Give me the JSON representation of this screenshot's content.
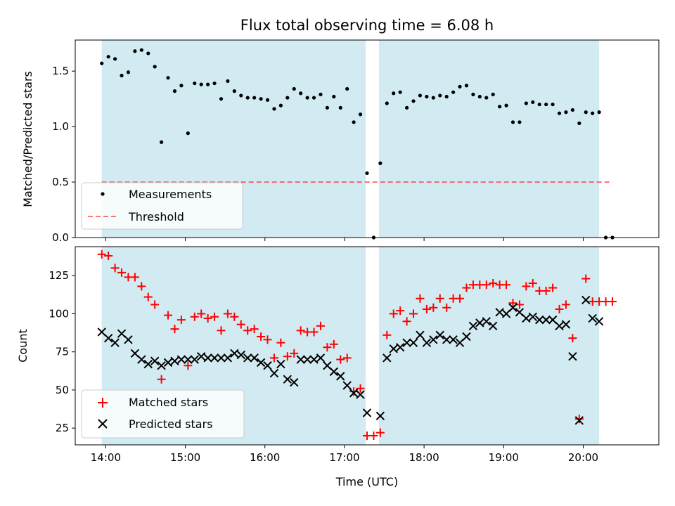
{
  "title": "Flux total observing time = 6.08 h",
  "xlabel": "Time (UTC)",
  "colors": {
    "band": "#add8e6",
    "measurement": "#000000",
    "threshold": "#ff0000",
    "matched": "#ff0000",
    "predicted": "#000000"
  },
  "chart_data": [
    {
      "type": "scatter",
      "ylabel": "Matched/Predicted stars",
      "xlim": [
        "13:37",
        "20:57"
      ],
      "ylim": [
        0,
        1.78
      ],
      "yticks": [
        0.0,
        0.5,
        1.0,
        1.5
      ],
      "ytick_labels": [
        "0.0",
        "0.5",
        "1.0",
        "1.5"
      ],
      "shaded_intervals": [
        [
          "13:57",
          "17:16"
        ],
        [
          "17:26",
          "20:12"
        ]
      ],
      "threshold": {
        "name": "Threshold",
        "y": 0.5,
        "x_range": [
          "13:57",
          "20:22"
        ],
        "style": "dashed"
      },
      "legend": {
        "placement": "lower left",
        "entries": [
          "Measurements",
          "Threshold"
        ]
      },
      "series": [
        {
          "name": "Measurements",
          "marker": "dot",
          "points": [
            [
              "13:57",
              1.57
            ],
            [
              "14:02",
              1.63
            ],
            [
              "14:07",
              1.61
            ],
            [
              "14:12",
              1.46
            ],
            [
              "14:17",
              1.49
            ],
            [
              "14:22",
              1.68
            ],
            [
              "14:27",
              1.69
            ],
            [
              "14:32",
              1.66
            ],
            [
              "14:37",
              1.54
            ],
            [
              "14:42",
              0.86
            ],
            [
              "14:47",
              1.44
            ],
            [
              "14:52",
              1.32
            ],
            [
              "14:57",
              1.37
            ],
            [
              "15:02",
              0.94
            ],
            [
              "15:07",
              1.39
            ],
            [
              "15:12",
              1.38
            ],
            [
              "15:17",
              1.38
            ],
            [
              "15:22",
              1.39
            ],
            [
              "15:27",
              1.25
            ],
            [
              "15:32",
              1.41
            ],
            [
              "15:37",
              1.32
            ],
            [
              "15:42",
              1.28
            ],
            [
              "15:47",
              1.26
            ],
            [
              "15:52",
              1.26
            ],
            [
              "15:57",
              1.25
            ],
            [
              "16:02",
              1.24
            ],
            [
              "16:07",
              1.16
            ],
            [
              "16:12",
              1.19
            ],
            [
              "16:17",
              1.26
            ],
            [
              "16:22",
              1.34
            ],
            [
              "16:27",
              1.3
            ],
            [
              "16:32",
              1.26
            ],
            [
              "16:37",
              1.26
            ],
            [
              "16:42",
              1.29
            ],
            [
              "16:47",
              1.17
            ],
            [
              "16:52",
              1.27
            ],
            [
              "16:57",
              1.17
            ],
            [
              "17:02",
              1.34
            ],
            [
              "17:07",
              1.04
            ],
            [
              "17:12",
              1.11
            ],
            [
              "17:17",
              0.58
            ],
            [
              "17:22",
              0.0
            ],
            [
              "17:27",
              0.67
            ],
            [
              "17:32",
              1.21
            ],
            [
              "17:37",
              1.3
            ],
            [
              "17:42",
              1.31
            ],
            [
              "17:47",
              1.17
            ],
            [
              "17:52",
              1.23
            ],
            [
              "17:57",
              1.28
            ],
            [
              "18:02",
              1.27
            ],
            [
              "18:07",
              1.26
            ],
            [
              "18:12",
              1.28
            ],
            [
              "18:17",
              1.27
            ],
            [
              "18:22",
              1.31
            ],
            [
              "18:27",
              1.36
            ],
            [
              "18:32",
              1.37
            ],
            [
              "18:37",
              1.29
            ],
            [
              "18:42",
              1.27
            ],
            [
              "18:47",
              1.26
            ],
            [
              "18:52",
              1.29
            ],
            [
              "18:57",
              1.18
            ],
            [
              "19:02",
              1.19
            ],
            [
              "19:07",
              1.04
            ],
            [
              "19:12",
              1.04
            ],
            [
              "19:17",
              1.21
            ],
            [
              "19:22",
              1.22
            ],
            [
              "19:27",
              1.2
            ],
            [
              "19:32",
              1.2
            ],
            [
              "19:37",
              1.2
            ],
            [
              "19:42",
              1.12
            ],
            [
              "19:47",
              1.13
            ],
            [
              "19:52",
              1.15
            ],
            [
              "19:57",
              1.03
            ],
            [
              "20:02",
              1.13
            ],
            [
              "20:07",
              1.12
            ],
            [
              "20:12",
              1.13
            ],
            [
              "20:17",
              0.0
            ],
            [
              "20:22",
              0.0
            ]
          ]
        }
      ]
    },
    {
      "type": "scatter",
      "ylabel": "Count",
      "xlabel": "Time (UTC)",
      "xlim": [
        "13:37",
        "20:57"
      ],
      "ylim": [
        14,
        144
      ],
      "yticks": [
        25,
        50,
        75,
        100,
        125
      ],
      "ytick_labels": [
        "25",
        "50",
        "75",
        "100",
        "125"
      ],
      "xticks": [
        "14:00",
        "15:00",
        "16:00",
        "17:00",
        "18:00",
        "19:00",
        "20:00"
      ],
      "xtick_labels": [
        "14:00",
        "15:00",
        "16:00",
        "17:00",
        "18:00",
        "19:00",
        "20:00"
      ],
      "shaded_intervals": [
        [
          "13:57",
          "17:16"
        ],
        [
          "17:26",
          "20:12"
        ]
      ],
      "legend": {
        "placement": "lower left",
        "entries": [
          "Matched stars",
          "Predicted stars"
        ]
      },
      "series": [
        {
          "name": "Matched stars",
          "marker": "plus",
          "points": [
            [
              "13:57",
              139
            ],
            [
              "14:02",
              138
            ],
            [
              "14:07",
              130
            ],
            [
              "14:12",
              127
            ],
            [
              "14:17",
              124
            ],
            [
              "14:22",
              124
            ],
            [
              "14:27",
              118
            ],
            [
              "14:32",
              111
            ],
            [
              "14:37",
              106
            ],
            [
              "14:42",
              57
            ],
            [
              "14:47",
              99
            ],
            [
              "14:52",
              90
            ],
            [
              "14:57",
              96
            ],
            [
              "15:02",
              66
            ],
            [
              "15:07",
              98
            ],
            [
              "15:12",
              100
            ],
            [
              "15:17",
              97
            ],
            [
              "15:22",
              98
            ],
            [
              "15:27",
              89
            ],
            [
              "15:32",
              100
            ],
            [
              "15:37",
              98
            ],
            [
              "15:42",
              93
            ],
            [
              "15:47",
              89
            ],
            [
              "15:52",
              90
            ],
            [
              "15:57",
              85
            ],
            [
              "16:02",
              83
            ],
            [
              "16:07",
              71
            ],
            [
              "16:12",
              81
            ],
            [
              "16:17",
              72
            ],
            [
              "16:22",
              74
            ],
            [
              "16:27",
              89
            ],
            [
              "16:32",
              88
            ],
            [
              "16:37",
              88
            ],
            [
              "16:42",
              92
            ],
            [
              "16:47",
              78
            ],
            [
              "16:52",
              80
            ],
            [
              "16:57",
              70
            ],
            [
              "17:02",
              71
            ],
            [
              "17:07",
              49
            ],
            [
              "17:12",
              51
            ],
            [
              "17:17",
              20
            ],
            [
              "17:22",
              20
            ],
            [
              "17:27",
              22
            ],
            [
              "17:32",
              86
            ],
            [
              "17:37",
              100
            ],
            [
              "17:42",
              102
            ],
            [
              "17:47",
              95
            ],
            [
              "17:52",
              100
            ],
            [
              "17:57",
              110
            ],
            [
              "18:02",
              103
            ],
            [
              "18:07",
              104
            ],
            [
              "18:12",
              110
            ],
            [
              "18:17",
              104
            ],
            [
              "18:22",
              110
            ],
            [
              "18:27",
              110
            ],
            [
              "18:32",
              117
            ],
            [
              "18:37",
              119
            ],
            [
              "18:42",
              119
            ],
            [
              "18:47",
              119
            ],
            [
              "18:52",
              120
            ],
            [
              "18:57",
              119
            ],
            [
              "19:02",
              119
            ],
            [
              "19:07",
              107
            ],
            [
              "19:12",
              106
            ],
            [
              "19:17",
              118
            ],
            [
              "19:22",
              120
            ],
            [
              "19:27",
              115
            ],
            [
              "19:32",
              115
            ],
            [
              "19:37",
              117
            ],
            [
              "19:42",
              103
            ],
            [
              "19:47",
              106
            ],
            [
              "19:52",
              84
            ],
            [
              "19:57",
              31
            ],
            [
              "20:02",
              123
            ],
            [
              "20:07",
              108
            ],
            [
              "20:12",
              108
            ],
            [
              "20:17",
              108
            ],
            [
              "20:22",
              108
            ]
          ]
        },
        {
          "name": "Predicted stars",
          "marker": "x",
          "points": [
            [
              "13:57",
              88
            ],
            [
              "14:02",
              84
            ],
            [
              "14:07",
              81
            ],
            [
              "14:12",
              87
            ],
            [
              "14:17",
              83
            ],
            [
              "14:22",
              74
            ],
            [
              "14:27",
              70
            ],
            [
              "14:32",
              67
            ],
            [
              "14:37",
              69
            ],
            [
              "14:42",
              66
            ],
            [
              "14:47",
              68
            ],
            [
              "14:52",
              69
            ],
            [
              "14:57",
              70
            ],
            [
              "15:02",
              70
            ],
            [
              "15:07",
              70
            ],
            [
              "15:12",
              72
            ],
            [
              "15:17",
              71
            ],
            [
              "15:22",
              71
            ],
            [
              "15:27",
              71
            ],
            [
              "15:32",
              71
            ],
            [
              "15:37",
              74
            ],
            [
              "15:42",
              73
            ],
            [
              "15:47",
              71
            ],
            [
              "15:52",
              71
            ],
            [
              "15:57",
              68
            ],
            [
              "16:02",
              66
            ],
            [
              "16:07",
              61
            ],
            [
              "16:12",
              67
            ],
            [
              "16:17",
              57
            ],
            [
              "16:22",
              55
            ],
            [
              "16:27",
              70
            ],
            [
              "16:32",
              70
            ],
            [
              "16:37",
              70
            ],
            [
              "16:42",
              71
            ],
            [
              "16:47",
              66
            ],
            [
              "16:52",
              62
            ],
            [
              "16:57",
              59
            ],
            [
              "17:02",
              53
            ],
            [
              "17:07",
              48
            ],
            [
              "17:12",
              47
            ],
            [
              "17:17",
              35
            ],
            [
              "17:27",
              33
            ],
            [
              "17:32",
              71
            ],
            [
              "17:37",
              77
            ],
            [
              "17:42",
              78
            ],
            [
              "17:47",
              81
            ],
            [
              "17:52",
              81
            ],
            [
              "17:57",
              86
            ],
            [
              "18:02",
              81
            ],
            [
              "18:07",
              83
            ],
            [
              "18:12",
              86
            ],
            [
              "18:17",
              83
            ],
            [
              "18:22",
              83
            ],
            [
              "18:27",
              81
            ],
            [
              "18:32",
              85
            ],
            [
              "18:37",
              92
            ],
            [
              "18:42",
              94
            ],
            [
              "18:47",
              95
            ],
            [
              "18:52",
              92
            ],
            [
              "18:57",
              101
            ],
            [
              "19:02",
              100
            ],
            [
              "19:07",
              104
            ],
            [
              "19:12",
              101
            ],
            [
              "19:17",
              97
            ],
            [
              "19:22",
              98
            ],
            [
              "19:27",
              96
            ],
            [
              "19:32",
              96
            ],
            [
              "19:37",
              96
            ],
            [
              "19:42",
              92
            ],
            [
              "19:47",
              93
            ],
            [
              "19:52",
              72
            ],
            [
              "19:57",
              30
            ],
            [
              "20:02",
              109
            ],
            [
              "20:07",
              97
            ],
            [
              "20:12",
              95
            ]
          ]
        }
      ]
    }
  ]
}
